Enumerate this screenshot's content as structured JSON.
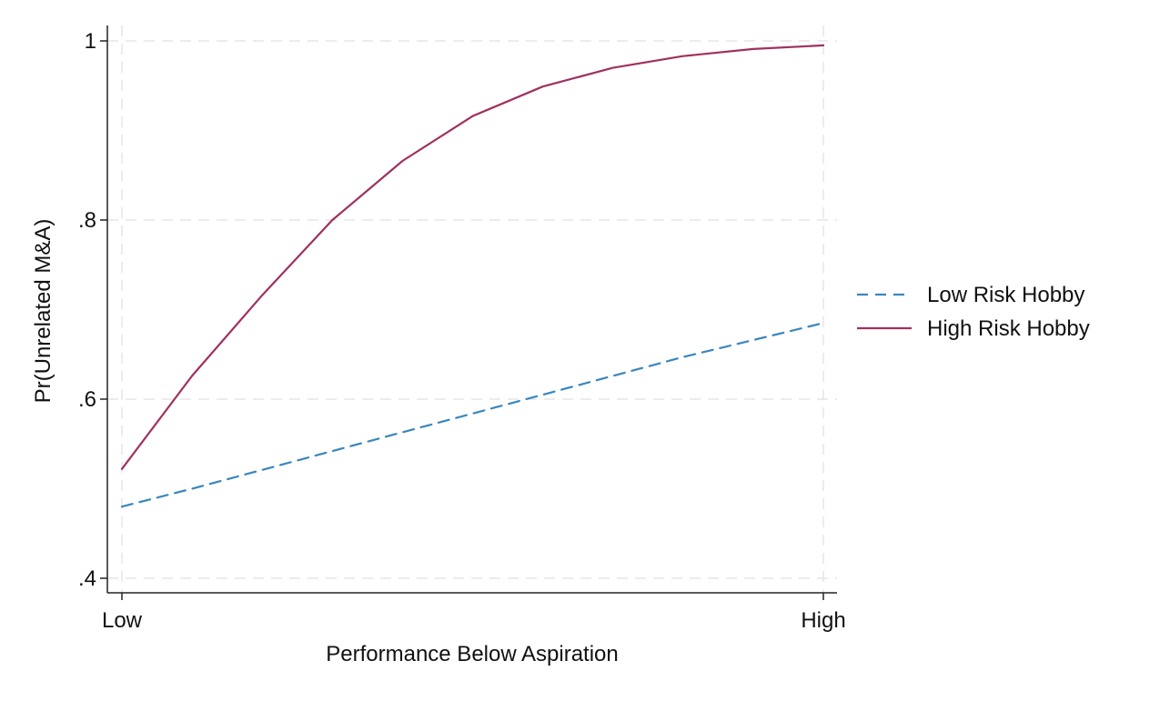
{
  "chart_data": {
    "type": "line",
    "title": "",
    "xlabel": "Performance Below Aspiration",
    "ylabel": "Pr(Unrelated M&A)",
    "x_ticks": [
      "Low",
      "High"
    ],
    "xlim": [
      0,
      10
    ],
    "ylim": [
      0.4,
      1.0
    ],
    "y_ticks": [
      {
        "value": 0.4,
        "label": ".4"
      },
      {
        "value": 0.6,
        "label": ".6"
      },
      {
        "value": 0.8,
        "label": ".8"
      },
      {
        "value": 1.0,
        "label": "1"
      }
    ],
    "grid": true,
    "legend_position": "right",
    "x": [
      0,
      1,
      2,
      3,
      4,
      5,
      6,
      7,
      8,
      9,
      10
    ],
    "series": [
      {
        "name": "Low Risk Hobby",
        "style": "dashed",
        "color": "#3a86bd",
        "values": [
          0.48,
          0.5,
          0.521,
          0.542,
          0.563,
          0.584,
          0.605,
          0.626,
          0.647,
          0.666,
          0.685
        ]
      },
      {
        "name": "High Risk Hobby",
        "style": "solid",
        "color": "#a0305f",
        "values": [
          0.522,
          0.626,
          0.716,
          0.8,
          0.866,
          0.916,
          0.949,
          0.97,
          0.983,
          0.991,
          0.995
        ]
      }
    ]
  }
}
